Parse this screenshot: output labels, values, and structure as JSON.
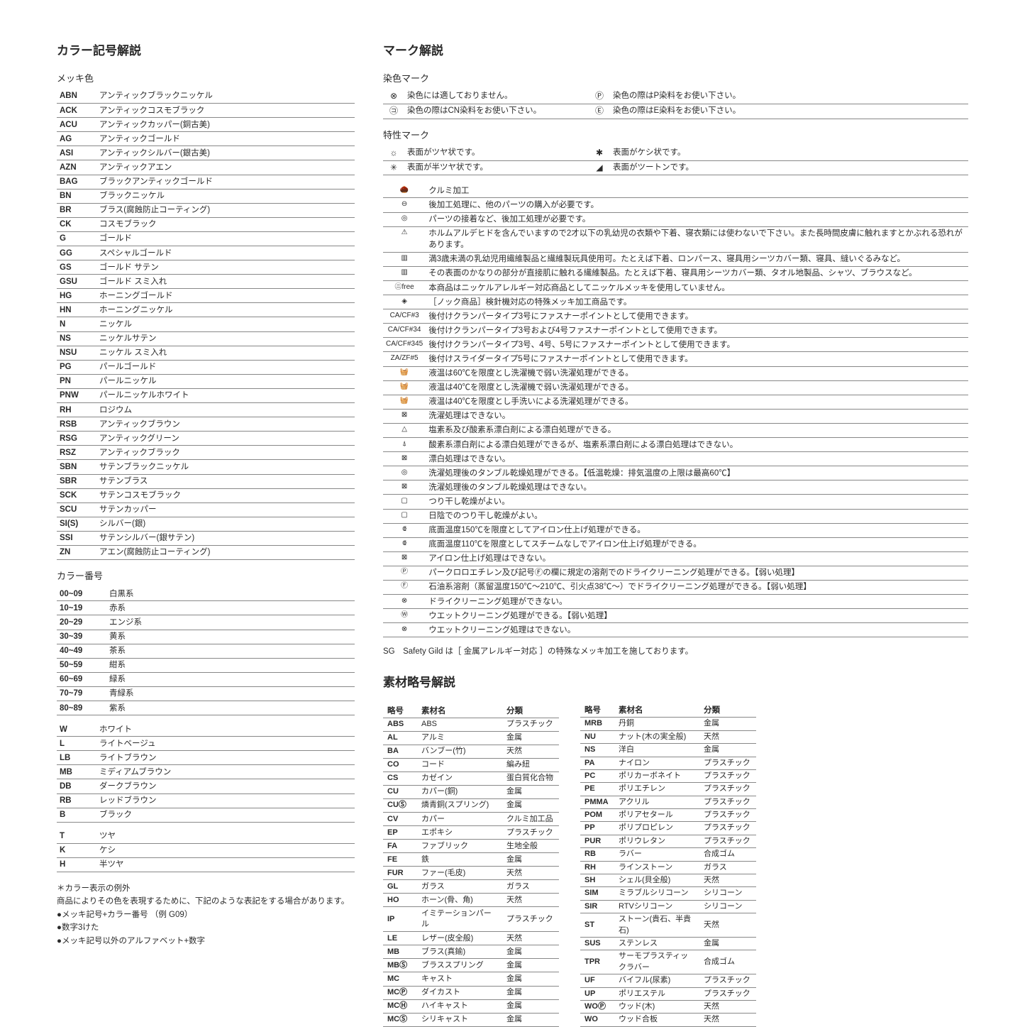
{
  "headings": {
    "color_symbol": "カラー記号解説",
    "mark": "マーク解説",
    "material": "素材略号解説",
    "plating": "メッキ色",
    "color_number": "カラー番号",
    "dye_mark": "染色マーク",
    "char_mark": "特性マーク"
  },
  "plating": [
    [
      "ABN",
      "アンティックブラックニッケル"
    ],
    [
      "ACK",
      "アンティックコスモブラック"
    ],
    [
      "ACU",
      "アンティックカッパー(銅古美)"
    ],
    [
      "AG",
      "アンティックゴールド"
    ],
    [
      "ASI",
      "アンティックシルバー(銀古美)"
    ],
    [
      "AZN",
      "アンティックアエン"
    ],
    [
      "BAG",
      "ブラックアンティックゴールド"
    ],
    [
      "BN",
      "ブラックニッケル"
    ],
    [
      "BR",
      "ブラス(腐蝕防止コーティング)"
    ],
    [
      "CK",
      "コスモブラック"
    ],
    [
      "G",
      "ゴールド"
    ],
    [
      "GG",
      "スペシャルゴールド"
    ],
    [
      "GS",
      "ゴールド サテン"
    ],
    [
      "GSU",
      "ゴールド スミ入れ"
    ],
    [
      "HG",
      "ホーニングゴールド"
    ],
    [
      "HN",
      "ホーニングニッケル"
    ],
    [
      "N",
      "ニッケル"
    ],
    [
      "NS",
      "ニッケルサテン"
    ],
    [
      "NSU",
      "ニッケル スミ入れ"
    ],
    [
      "PG",
      "パールゴールド"
    ],
    [
      "PN",
      "パールニッケル"
    ],
    [
      "PNW",
      "パールニッケルホワイト"
    ],
    [
      "RH",
      "ロジウム"
    ],
    [
      "RSB",
      "アンティックブラウン"
    ],
    [
      "RSG",
      "アンティックグリーン"
    ],
    [
      "RSZ",
      "アンティックブラック"
    ],
    [
      "SBN",
      "サテンブラックニッケル"
    ],
    [
      "SBR",
      "サテンブラス"
    ],
    [
      "SCK",
      "サテンコスモブラック"
    ],
    [
      "SCU",
      "サテンカッパー"
    ],
    [
      "SI(S)",
      "シルバー(銀)"
    ],
    [
      "SSI",
      "サテンシルバー(銀サテン)"
    ],
    [
      "ZN",
      "アエン(腐蝕防止コーティング)"
    ]
  ],
  "color_number": [
    [
      "00~09",
      "白黒系"
    ],
    [
      "10~19",
      "赤系"
    ],
    [
      "20~29",
      "エンジ系"
    ],
    [
      "30~39",
      "黄系"
    ],
    [
      "40~49",
      "茶系"
    ],
    [
      "50~59",
      "紺系"
    ],
    [
      "60~69",
      "緑系"
    ],
    [
      "70~79",
      "青緑系"
    ],
    [
      "80~89",
      "紫系"
    ]
  ],
  "color_letters": [
    [
      "W",
      "ホワイト"
    ],
    [
      "L",
      "ライトベージュ"
    ],
    [
      "LB",
      "ライトブラウン"
    ],
    [
      "MB",
      "ミディアムブラウン"
    ],
    [
      "DB",
      "ダークブラウン"
    ],
    [
      "RB",
      "レッドブラウン"
    ],
    [
      "B",
      "ブラック"
    ]
  ],
  "finish": [
    [
      "T",
      "ツヤ"
    ],
    [
      "K",
      "ケシ"
    ],
    [
      "H",
      "半ツヤ"
    ]
  ],
  "color_note": [
    "＊カラー表示の例外",
    "商品によりその色を表現するために、下記のような表記をする場合があります。",
    "●メッキ記号+カラー番号 （例 G09）",
    "●数字3けた",
    "●メッキ記号以外のアルファベット+数字"
  ],
  "dye_marks": [
    {
      "i1": "⊗",
      "d1": "染色には適しておりません。",
      "i2": "Ⓟ",
      "d2": "染色の際はP染料をお使い下さい。"
    },
    {
      "i1": "㋙",
      "d1": "染色の際はCN染料をお使い下さい。",
      "i2": "Ⓔ",
      "d2": "染色の際はE染料をお使い下さい。"
    }
  ],
  "char_marks_pair": [
    {
      "i1": "☼",
      "d1": "表面がツヤ状です。",
      "i2": "✱",
      "d2": "表面がケシ状です。"
    },
    {
      "i1": "✳",
      "d1": "表面が半ツヤ状です。",
      "i2": "◢",
      "d2": "表面がツートンです。"
    }
  ],
  "char_marks": [
    {
      "i": "🌰",
      "d": "クルミ加工"
    },
    {
      "i": "⊖",
      "d": "後加工処理に、他のパーツの購入が必要です。"
    },
    {
      "i": "◎",
      "d": "パーツの接着など、後加工処理が必要です。"
    },
    {
      "i": "⚠",
      "d": "ホルムアルデヒドを含んでいますので2才以下の乳幼児の衣類や下着、寝衣類には使わないで下さい。また長時間皮膚に触れますとかぶれる恐れがあります。"
    },
    {
      "i": "▥",
      "d": "満3歳未満の乳幼児用繊維製品と繊維製玩具使用可。たとえば下着、ロンパース、寝具用シーツカバー類、寝具、縫いぐるみなど。"
    },
    {
      "i": "▥",
      "d": "その表面のかなりの部分が直接肌に触れる繊維製品。たとえば下着、寝具用シーツカバー類、タオル地製品、シャツ、ブラウスなど。"
    },
    {
      "i": "㋥free",
      "d": "本商品はニッケルアレルギー対応商品としてニッケルメッキを使用していません。"
    },
    {
      "i": "◈",
      "d": "［ノック商品］検針機対応の特殊メッキ加工商品です。"
    },
    {
      "i": "CA/CF#3",
      "d": "後付けクランパータイプ3号にファスナーポイントとして使用できます。"
    },
    {
      "i": "CA/CF#34",
      "d": "後付けクランパータイプ3号および4号ファスナーポイントとして使用できます。"
    },
    {
      "i": "CA/CF#345",
      "d": "後付けクランパータイプ3号、4号、5号にファスナーポイントとして使用できます。"
    },
    {
      "i": "ZA/ZF#5",
      "d": "後付けスライダータイプ5号にファスナーポイントとして使用できます。"
    },
    {
      "i": "🧺",
      "d": "液温は60℃を限度とし洗濯機で弱い洗濯処理ができる。"
    },
    {
      "i": "🧺",
      "d": "液温は40℃を限度とし洗濯機で弱い洗濯処理ができる。"
    },
    {
      "i": "🧺",
      "d": "液温は40℃を限度とし手洗いによる洗濯処理ができる。"
    },
    {
      "i": "⊠",
      "d": "洗濯処理はできない。"
    },
    {
      "i": "△",
      "d": "塩素系及び酸素系漂白剤による漂白処理ができる。"
    },
    {
      "i": "⍋",
      "d": "酸素系漂白剤による漂白処理ができるが、塩素系漂白剤による漂白処理はできない。"
    },
    {
      "i": "⊠",
      "d": "漂白処理はできない。"
    },
    {
      "i": "◎",
      "d": "洗濯処理後のタンブル乾燥処理ができる。【低温乾燥：排気温度の上限は最高60℃】"
    },
    {
      "i": "⊠",
      "d": "洗濯処理後のタンブル乾燥処理はできない。"
    },
    {
      "i": "▢",
      "d": "つり干し乾燥がよい。"
    },
    {
      "i": "▢",
      "d": "日陰でのつり干し乾燥がよい。"
    },
    {
      "i": "⟃",
      "d": "底面温度150℃を限度としてアイロン仕上げ処理ができる。"
    },
    {
      "i": "⟃",
      "d": "底面温度110℃を限度としてスチームなしでアイロン仕上げ処理ができる。"
    },
    {
      "i": "⊠",
      "d": "アイロン仕上げ処理はできない。"
    },
    {
      "i": "Ⓟ",
      "d": "パークロロエチレン及び記号Ⓕの欄に規定の溶剤でのドライクリーニング処理ができる。【弱い処理】"
    },
    {
      "i": "Ⓕ",
      "d": "石油系溶剤（蒸留温度150℃〜210℃、引火点38℃〜）でドライクリーニング処理ができる。【弱い処理】"
    },
    {
      "i": "⊗",
      "d": "ドライクリーニング処理ができない。"
    },
    {
      "i": "Ⓦ",
      "d": "ウエットクリーニング処理ができる。【弱い処理】"
    },
    {
      "i": "⊗",
      "d": "ウエットクリーニング処理はできない。"
    }
  ],
  "sg_note": "SG　Safety Gild は［ 金属アレルギー対応 ］の特殊なメッキ加工を施しております。",
  "material_headers": [
    "略号",
    "素材名",
    "分類"
  ],
  "materials_left": [
    [
      "ABS",
      "ABS",
      "プラスチック"
    ],
    [
      "AL",
      "アルミ",
      "金属"
    ],
    [
      "BA",
      "バンブー(竹)",
      "天然"
    ],
    [
      "CO",
      "コード",
      "編み紐"
    ],
    [
      "CS",
      "カゼイン",
      "蛋白質化合物"
    ],
    [
      "CU",
      "カパー(銅)",
      "金属"
    ],
    [
      "CUⓈ",
      "燐青銅(スプリング)",
      "金属"
    ],
    [
      "CV",
      "カパー",
      "クルミ加工品"
    ],
    [
      "EP",
      "エポキシ",
      "プラスチック"
    ],
    [
      "FA",
      "ファブリック",
      "生地全般"
    ],
    [
      "FE",
      "鉄",
      "金属"
    ],
    [
      "FUR",
      "ファー(毛皮)",
      "天然"
    ],
    [
      "GL",
      "ガラス",
      "ガラス"
    ],
    [
      "HO",
      "ホーン(骨、角)",
      "天然"
    ],
    [
      "IP",
      "イミテーションパール",
      "プラスチック"
    ],
    [
      "LE",
      "レザー(皮全般)",
      "天然"
    ],
    [
      "MB",
      "ブラス(真鍮)",
      "金属"
    ],
    [
      "MBⓈ",
      "ブラススプリング",
      "金属"
    ],
    [
      "MC",
      "キャスト",
      "金属"
    ],
    [
      "MCⓅ",
      "ダイカスト",
      "金属"
    ],
    [
      "MCⒽ",
      "ハイキャスト",
      "金属"
    ],
    [
      "MCⓈ",
      "シリキャスト",
      "金属"
    ]
  ],
  "materials_right": [
    [
      "MRB",
      "丹銅",
      "金属"
    ],
    [
      "NU",
      "ナット(木の実全般)",
      "天然"
    ],
    [
      "NS",
      "洋白",
      "金属"
    ],
    [
      "PA",
      "ナイロン",
      "プラスチック"
    ],
    [
      "PC",
      "ポリカーボネイト",
      "プラスチック"
    ],
    [
      "PE",
      "ポリエチレン",
      "プラスチック"
    ],
    [
      "PMMA",
      "アクリル",
      "プラスチック"
    ],
    [
      "POM",
      "ポリアセタール",
      "プラスチック"
    ],
    [
      "PP",
      "ポリプロピレン",
      "プラスチック"
    ],
    [
      "PUR",
      "ポリウレタン",
      "プラスチック"
    ],
    [
      "RB",
      "ラバー",
      "合成ゴム"
    ],
    [
      "RH",
      "ラインストーン",
      "ガラス"
    ],
    [
      "SH",
      "シェル(貝全般)",
      "天然"
    ],
    [
      "SIM",
      "ミラブルシリコーン",
      "シリコーン"
    ],
    [
      "SIR",
      "RTVシリコーン",
      "シリコーン"
    ],
    [
      "ST",
      "ストーン(貴石、半貴石)",
      "天然"
    ],
    [
      "SUS",
      "ステンレス",
      "金属"
    ],
    [
      "TPR",
      "サーモプラスティックラバー",
      "合成ゴム"
    ],
    [
      "UF",
      "バイフル(尿素)",
      "プラスチック"
    ],
    [
      "UP",
      "ポリエステル",
      "プラスチック"
    ],
    [
      "WOⓅ",
      "ウッド(木)",
      "天然"
    ],
    [
      "WO",
      "ウッド合板",
      "天然"
    ]
  ]
}
